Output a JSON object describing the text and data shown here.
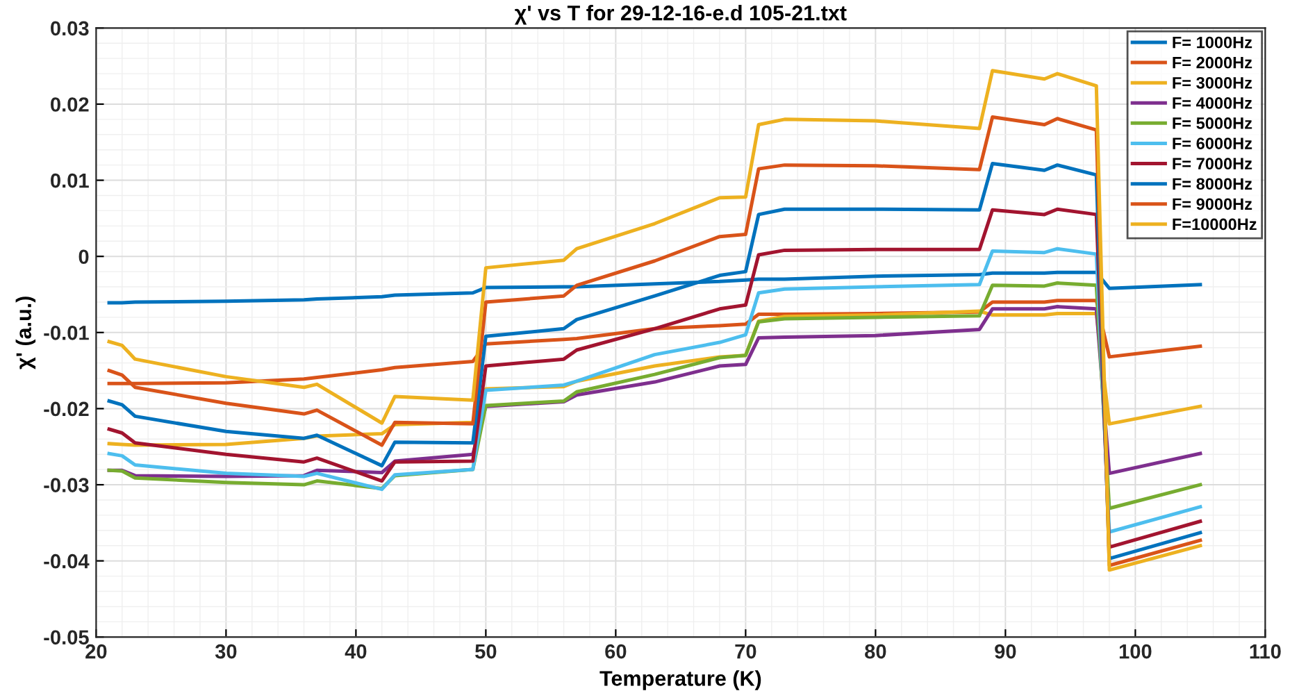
{
  "chart_data": {
    "type": "line",
    "title": "χ' vs T for 29-12-16-e.d 105-21.txt",
    "xlabel": "Temperature (K)",
    "ylabel": "χ' (a.u.)",
    "x": [
      21,
      22,
      23,
      30,
      36,
      37,
      42,
      43,
      49,
      50,
      56,
      57,
      63,
      68,
      70,
      71,
      73,
      80,
      88,
      89,
      93,
      94,
      97,
      98,
      105
    ],
    "series": [
      {
        "name": "F= 1000Hz",
        "color": "#0072bd",
        "values": [
          -0.0061,
          -0.0061,
          -0.006,
          -0.0059,
          -0.0057,
          -0.0056,
          -0.0053,
          -0.0051,
          -0.0048,
          -0.0041,
          -0.004,
          -0.004,
          -0.0036,
          -0.0033,
          -0.0031,
          -0.003,
          -0.003,
          -0.0026,
          -0.0024,
          -0.0022,
          -0.0022,
          -0.0021,
          -0.0021,
          -0.0042,
          -0.0037
        ]
      },
      {
        "name": "F= 2000Hz",
        "color": "#d95319",
        "values": [
          -0.0167,
          -0.0167,
          -0.0167,
          -0.0166,
          -0.0161,
          -0.0159,
          -0.0149,
          -0.0146,
          -0.0138,
          -0.0115,
          -0.0109,
          -0.0108,
          -0.0095,
          -0.0091,
          -0.0089,
          -0.0076,
          -0.0076,
          -0.0075,
          -0.0073,
          -0.006,
          -0.006,
          -0.0058,
          -0.0058,
          -0.0132,
          -0.0118
        ]
      },
      {
        "name": "F= 3000Hz",
        "color": "#edb120",
        "values": [
          -0.0246,
          -0.0247,
          -0.0248,
          -0.0247,
          -0.0239,
          -0.0236,
          -0.0233,
          -0.0221,
          -0.0218,
          -0.0174,
          -0.0171,
          -0.0164,
          -0.0144,
          -0.0132,
          -0.013,
          -0.0085,
          -0.0079,
          -0.0077,
          -0.0072,
          -0.0077,
          -0.0077,
          -0.0075,
          -0.0075,
          -0.022,
          -0.0197
        ]
      },
      {
        "name": "F= 4000Hz",
        "color": "#7e2f8e",
        "values": [
          -0.0281,
          -0.0281,
          -0.0288,
          -0.0289,
          -0.0288,
          -0.0281,
          -0.0284,
          -0.0269,
          -0.026,
          -0.0197,
          -0.0191,
          -0.0182,
          -0.0165,
          -0.0144,
          -0.0142,
          -0.0107,
          -0.0106,
          -0.0104,
          -0.0096,
          -0.0069,
          -0.0069,
          -0.0066,
          -0.0069,
          -0.0285,
          -0.0259
        ]
      },
      {
        "name": "F= 5000Hz",
        "color": "#77ac30",
        "values": [
          -0.0281,
          -0.0282,
          -0.0291,
          -0.0297,
          -0.03,
          -0.0295,
          -0.0305,
          -0.0288,
          -0.028,
          -0.0196,
          -0.019,
          -0.0178,
          -0.0155,
          -0.0133,
          -0.013,
          -0.0086,
          -0.0082,
          -0.008,
          -0.0078,
          -0.0038,
          -0.0039,
          -0.0035,
          -0.0038,
          -0.0331,
          -0.03
        ]
      },
      {
        "name": "F= 6000Hz",
        "color": "#4dbeee",
        "values": [
          -0.0259,
          -0.0262,
          -0.0274,
          -0.0285,
          -0.0289,
          -0.0285,
          -0.0306,
          -0.0287,
          -0.028,
          -0.0176,
          -0.0169,
          -0.0164,
          -0.0129,
          -0.0113,
          -0.0103,
          -0.0048,
          -0.0043,
          -0.004,
          -0.0037,
          0.0007,
          0.0005,
          0.001,
          0.0003,
          -0.0362,
          -0.0329
        ]
      },
      {
        "name": "F= 7000Hz",
        "color": "#a2142f",
        "values": [
          -0.0227,
          -0.0232,
          -0.0245,
          -0.026,
          -0.027,
          -0.0265,
          -0.0295,
          -0.027,
          -0.0269,
          -0.0144,
          -0.0135,
          -0.0123,
          -0.0095,
          -0.0069,
          -0.0064,
          0.0002,
          0.0008,
          0.0009,
          0.0009,
          0.0061,
          0.0055,
          0.0062,
          0.0055,
          -0.0382,
          -0.0348
        ]
      },
      {
        "name": "F= 8000Hz",
        "color": "#0072bd",
        "values": [
          -0.019,
          -0.0195,
          -0.021,
          -0.023,
          -0.0239,
          -0.0235,
          -0.0275,
          -0.0244,
          -0.0245,
          -0.0105,
          -0.0095,
          -0.0083,
          -0.0052,
          -0.0025,
          -0.002,
          0.0055,
          0.0062,
          0.0062,
          0.0061,
          0.0122,
          0.0113,
          0.012,
          0.0107,
          -0.0397,
          -0.0363
        ]
      },
      {
        "name": "F= 9000Hz",
        "color": "#d95319",
        "values": [
          -0.015,
          -0.0156,
          -0.0172,
          -0.0193,
          -0.0207,
          -0.0202,
          -0.0248,
          -0.0218,
          -0.022,
          -0.006,
          -0.0052,
          -0.0038,
          -0.0006,
          0.0026,
          0.0029,
          0.0115,
          0.012,
          0.0119,
          0.0114,
          0.0183,
          0.0173,
          0.0181,
          0.0166,
          -0.0406,
          -0.0373
        ]
      },
      {
        "name": "F=10000Hz",
        "color": "#edb120",
        "values": [
          -0.0112,
          -0.0117,
          -0.0135,
          -0.0158,
          -0.0172,
          -0.0168,
          -0.0219,
          -0.0184,
          -0.0189,
          -0.0015,
          -0.0005,
          0.001,
          0.0043,
          0.0077,
          0.0078,
          0.0173,
          0.018,
          0.0178,
          0.0168,
          0.0244,
          0.0233,
          0.024,
          0.0224,
          -0.0412,
          -0.038
        ]
      }
    ],
    "xlim": [
      20,
      110
    ],
    "xticks": [
      20,
      30,
      40,
      50,
      60,
      70,
      80,
      90,
      100,
      110
    ],
    "ylim": [
      -0.05,
      0.03
    ],
    "yticks": [
      {
        "value": -0.05,
        "label": "-0.05"
      },
      {
        "value": -0.04,
        "label": "-0.04"
      },
      {
        "value": -0.03,
        "label": "-0.03"
      },
      {
        "value": -0.02,
        "label": "-0.02"
      },
      {
        "value": -0.01,
        "label": "-0.01"
      },
      0,
      0.01,
      0.02,
      0.03
    ],
    "grid": true,
    "legend": "top right"
  }
}
